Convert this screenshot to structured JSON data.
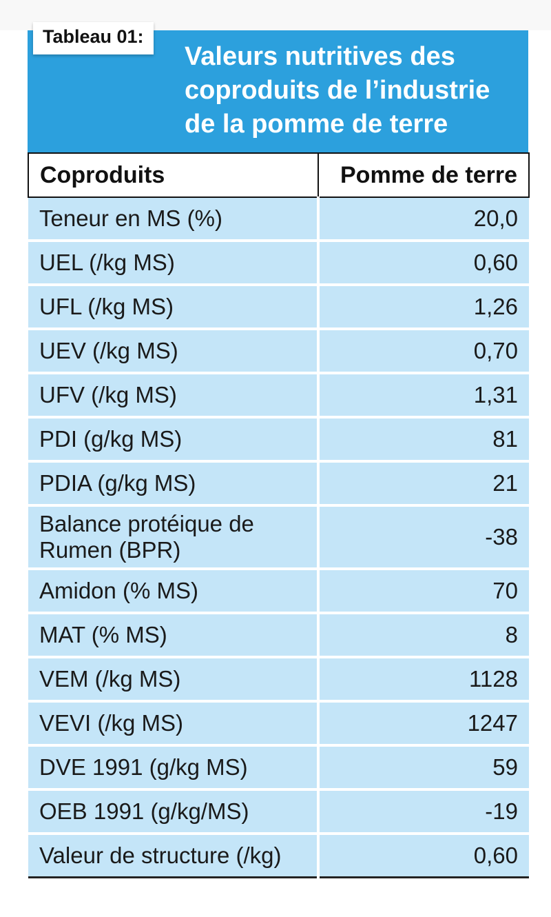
{
  "tag": "Tableau 01:",
  "title_lines": [
    "Valeurs nutritives des",
    "coproduits de l’industrie",
    "de la  pomme de terre"
  ],
  "headers": [
    "Coproduits",
    "Pomme de terre"
  ],
  "rows": [
    {
      "label": "Teneur en MS (%)",
      "value": "20,0"
    },
    {
      "label": "UEL (/kg MS)",
      "value": "0,60"
    },
    {
      "label": "UFL (/kg MS)",
      "value": "1,26"
    },
    {
      "label": "UEV (/kg MS)",
      "value": "0,70"
    },
    {
      "label": "UFV (/kg MS)",
      "value": "1,31"
    },
    {
      "label": "PDI (g/kg MS)",
      "value": "81"
    },
    {
      "label": "PDIA (g/kg MS)",
      "value": "21"
    },
    {
      "label": "Balance protéique de\nRumen (BPR)",
      "value": "-38"
    },
    {
      "label": "Amidon (% MS)",
      "value": "70"
    },
    {
      "label": "MAT (% MS)",
      "value": "8"
    },
    {
      "label": "VEM (/kg MS)",
      "value": "1128"
    },
    {
      "label": "VEVI (/kg MS)",
      "value": "1247"
    },
    {
      "label": "DVE 1991 (g/kg MS)",
      "value": "59"
    },
    {
      "label": "OEB 1991 (g/kg/MS)",
      "value": "-19"
    },
    {
      "label": "Valeur de structure (/kg)",
      "value": "0,60"
    }
  ],
  "colors": {
    "banner": "#2ca0dd",
    "row_bg": "#c4e5f8"
  }
}
